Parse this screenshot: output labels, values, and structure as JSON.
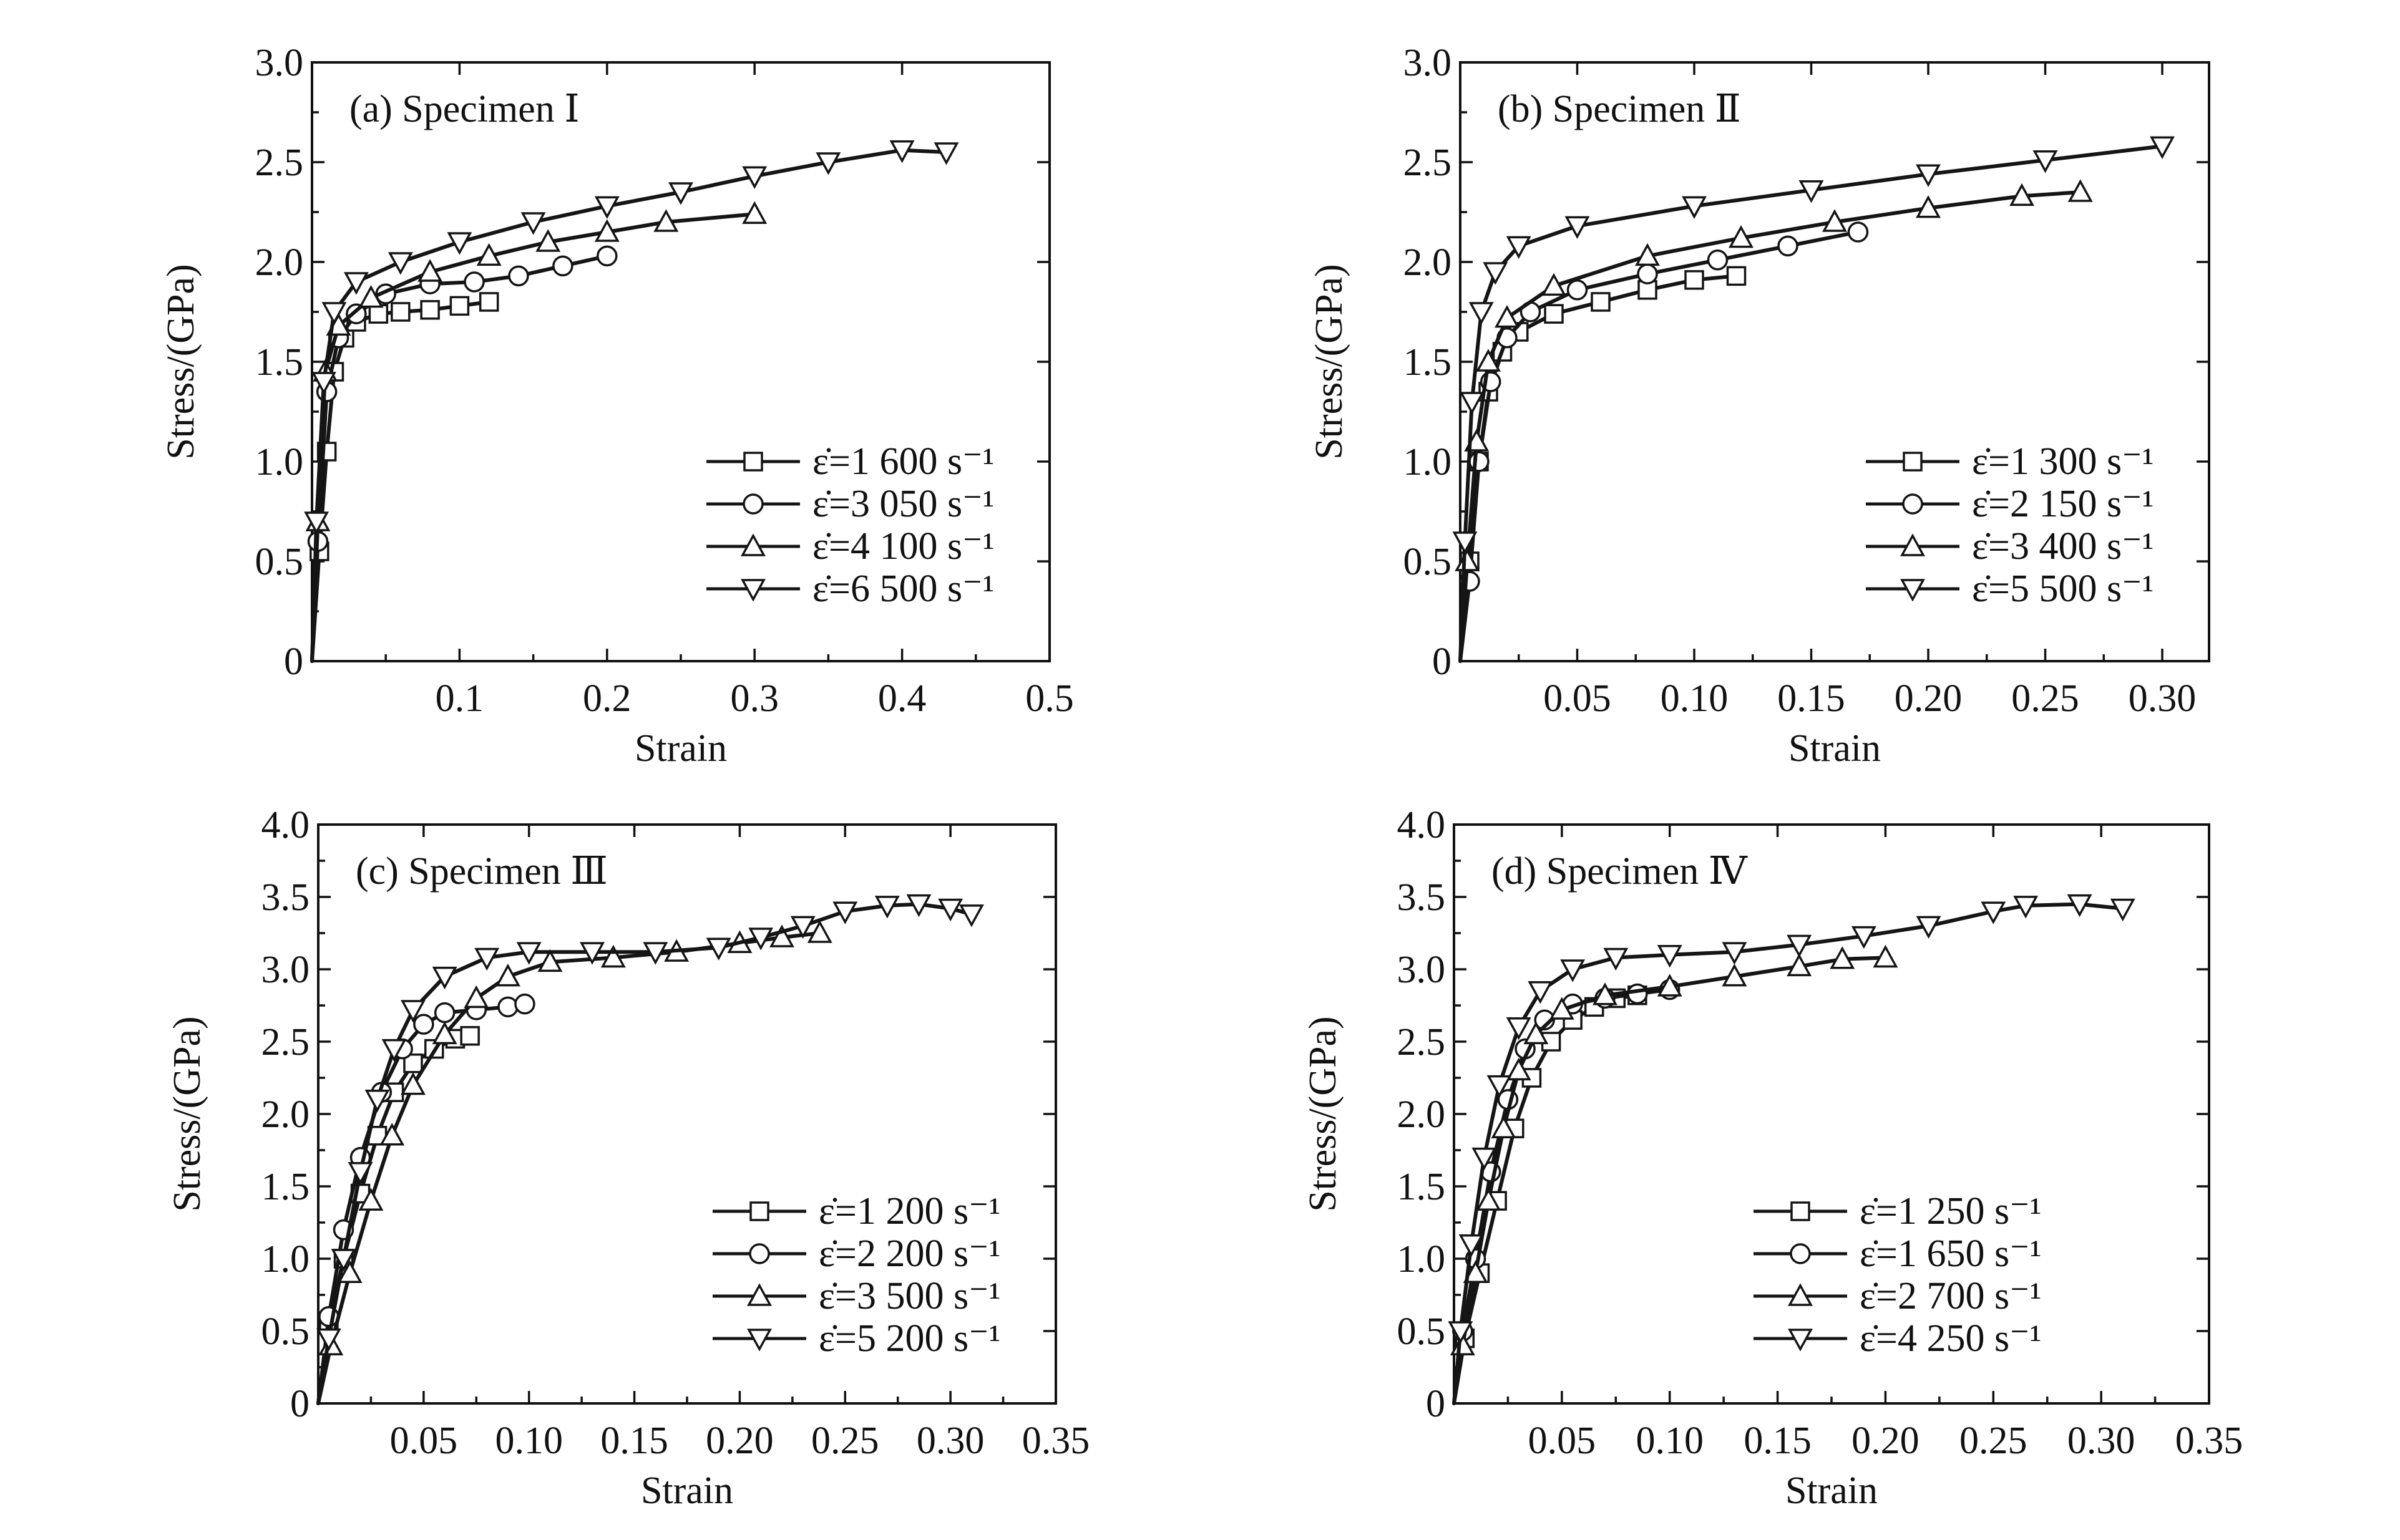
{
  "chart_data": [
    {
      "type": "line",
      "panel_label": "(a) Specimen Ⅰ",
      "xlabel": "Strain",
      "ylabel": "Stress/(GPa)",
      "xlim": [
        0,
        0.5
      ],
      "ylim": [
        0,
        3.0
      ],
      "x_ticks": [
        "0.1",
        "0.2",
        "0.3",
        "0.4",
        "0.5"
      ],
      "y_ticks": [
        "0",
        "0.5",
        "1.0",
        "1.5",
        "2.0",
        "2.5",
        "3.0"
      ],
      "legend_position": "lower-right",
      "series": [
        {
          "name": "ε̇=1 600 s⁻¹",
          "marker": "square",
          "points": [
            [
              0,
              0
            ],
            [
              0.005,
              0.55
            ],
            [
              0.01,
              1.05
            ],
            [
              0.015,
              1.45
            ],
            [
              0.022,
              1.62
            ],
            [
              0.03,
              1.7
            ],
            [
              0.045,
              1.74
            ],
            [
              0.06,
              1.75
            ],
            [
              0.08,
              1.76
            ],
            [
              0.1,
              1.78
            ],
            [
              0.12,
              1.8
            ]
          ]
        },
        {
          "name": "ε̇=3 050 s⁻¹",
          "marker": "circle",
          "points": [
            [
              0,
              0
            ],
            [
              0.004,
              0.6
            ],
            [
              0.01,
              1.35
            ],
            [
              0.018,
              1.62
            ],
            [
              0.03,
              1.74
            ],
            [
              0.05,
              1.84
            ],
            [
              0.08,
              1.89
            ],
            [
              0.11,
              1.9
            ],
            [
              0.14,
              1.93
            ],
            [
              0.17,
              1.98
            ],
            [
              0.2,
              2.03
            ]
          ]
        },
        {
          "name": "ε̇=4 100 s⁻¹",
          "marker": "triangle-up",
          "points": [
            [
              0,
              0
            ],
            [
              0.004,
              0.7
            ],
            [
              0.009,
              1.45
            ],
            [
              0.018,
              1.68
            ],
            [
              0.04,
              1.82
            ],
            [
              0.08,
              1.95
            ],
            [
              0.12,
              2.03
            ],
            [
              0.16,
              2.1
            ],
            [
              0.2,
              2.15
            ],
            [
              0.24,
              2.2
            ],
            [
              0.3,
              2.24
            ]
          ]
        },
        {
          "name": "ε̇=6 500 s⁻¹",
          "marker": "triangle-down",
          "points": [
            [
              0,
              0
            ],
            [
              0.003,
              0.7
            ],
            [
              0.008,
              1.4
            ],
            [
              0.015,
              1.75
            ],
            [
              0.03,
              1.9
            ],
            [
              0.06,
              2.0
            ],
            [
              0.1,
              2.1
            ],
            [
              0.15,
              2.2
            ],
            [
              0.2,
              2.28
            ],
            [
              0.25,
              2.35
            ],
            [
              0.3,
              2.43
            ],
            [
              0.35,
              2.5
            ],
            [
              0.4,
              2.56
            ],
            [
              0.43,
              2.55
            ]
          ]
        }
      ]
    },
    {
      "type": "line",
      "panel_label": "(b) Specimen Ⅱ",
      "xlabel": "Strain",
      "ylabel": "Stress/(GPa)",
      "xlim": [
        0,
        0.32
      ],
      "ylim": [
        0,
        3.0
      ],
      "x_ticks": [
        "0.05",
        "0.10",
        "0.15",
        "0.20",
        "0.25",
        "0.30"
      ],
      "y_ticks": [
        "0",
        "0.5",
        "1.0",
        "1.5",
        "2.0",
        "2.5",
        "3.0"
      ],
      "legend_position": "lower-right",
      "series": [
        {
          "name": "ε̇=1 300 s⁻¹",
          "marker": "square",
          "points": [
            [
              0,
              0
            ],
            [
              0.004,
              0.5
            ],
            [
              0.008,
              1.0
            ],
            [
              0.012,
              1.35
            ],
            [
              0.018,
              1.55
            ],
            [
              0.025,
              1.65
            ],
            [
              0.04,
              1.74
            ],
            [
              0.06,
              1.8
            ],
            [
              0.08,
              1.86
            ],
            [
              0.1,
              1.91
            ],
            [
              0.118,
              1.93
            ]
          ]
        },
        {
          "name": "ε̇=2 150 s⁻¹",
          "marker": "circle",
          "points": [
            [
              0,
              0
            ],
            [
              0.004,
              0.4
            ],
            [
              0.008,
              1.0
            ],
            [
              0.013,
              1.4
            ],
            [
              0.02,
              1.62
            ],
            [
              0.03,
              1.75
            ],
            [
              0.05,
              1.86
            ],
            [
              0.08,
              1.94
            ],
            [
              0.11,
              2.01
            ],
            [
              0.14,
              2.08
            ],
            [
              0.17,
              2.15
            ]
          ]
        },
        {
          "name": "ε̇=3 400 s⁻¹",
          "marker": "triangle-up",
          "points": [
            [
              0,
              0
            ],
            [
              0.003,
              0.5
            ],
            [
              0.007,
              1.1
            ],
            [
              0.012,
              1.5
            ],
            [
              0.02,
              1.72
            ],
            [
              0.04,
              1.88
            ],
            [
              0.08,
              2.03
            ],
            [
              0.12,
              2.12
            ],
            [
              0.16,
              2.2
            ],
            [
              0.2,
              2.27
            ],
            [
              0.24,
              2.33
            ],
            [
              0.265,
              2.35
            ]
          ]
        },
        {
          "name": "ε̇=5 500 s⁻¹",
          "marker": "triangle-down",
          "points": [
            [
              0,
              0
            ],
            [
              0.002,
              0.6
            ],
            [
              0.005,
              1.3
            ],
            [
              0.009,
              1.75
            ],
            [
              0.015,
              1.95
            ],
            [
              0.025,
              2.08
            ],
            [
              0.05,
              2.18
            ],
            [
              0.1,
              2.28
            ],
            [
              0.15,
              2.36
            ],
            [
              0.2,
              2.44
            ],
            [
              0.25,
              2.51
            ],
            [
              0.3,
              2.58
            ]
          ]
        }
      ]
    },
    {
      "type": "line",
      "panel_label": "(c) Specimen Ⅲ",
      "xlabel": "Strain",
      "ylabel": "Stress/(GPa)",
      "xlim": [
        0,
        0.35
      ],
      "ylim": [
        0,
        4.0
      ],
      "x_ticks": [
        "0.05",
        "0.10",
        "0.15",
        "0.20",
        "0.25",
        "0.30",
        "0.35"
      ],
      "y_ticks": [
        "0",
        "0.5",
        "1.0",
        "1.5",
        "2.0",
        "2.5",
        "3.0",
        "3.5",
        "4.0"
      ],
      "legend_position": "lower-right",
      "series": [
        {
          "name": "ε̇=1 200 s⁻¹",
          "marker": "square",
          "points": [
            [
              0,
              0
            ],
            [
              0.005,
              0.55
            ],
            [
              0.012,
              1.0
            ],
            [
              0.02,
              1.45
            ],
            [
              0.028,
              1.85
            ],
            [
              0.036,
              2.15
            ],
            [
              0.045,
              2.35
            ],
            [
              0.055,
              2.45
            ],
            [
              0.065,
              2.52
            ],
            [
              0.072,
              2.54
            ]
          ]
        },
        {
          "name": "ε̇=2 200 s⁻¹",
          "marker": "circle",
          "points": [
            [
              0,
              0
            ],
            [
              0.005,
              0.6
            ],
            [
              0.012,
              1.2
            ],
            [
              0.02,
              1.7
            ],
            [
              0.03,
              2.15
            ],
            [
              0.04,
              2.45
            ],
            [
              0.05,
              2.62
            ],
            [
              0.06,
              2.7
            ],
            [
              0.075,
              2.72
            ],
            [
              0.09,
              2.74
            ],
            [
              0.098,
              2.76
            ]
          ]
        },
        {
          "name": "ε̇=3 500 s⁻¹",
          "marker": "triangle-up",
          "points": [
            [
              0,
              0
            ],
            [
              0.006,
              0.4
            ],
            [
              0.015,
              0.9
            ],
            [
              0.025,
              1.4
            ],
            [
              0.035,
              1.85
            ],
            [
              0.045,
              2.2
            ],
            [
              0.06,
              2.55
            ],
            [
              0.075,
              2.8
            ],
            [
              0.09,
              2.95
            ],
            [
              0.11,
              3.05
            ],
            [
              0.14,
              3.08
            ],
            [
              0.17,
              3.12
            ],
            [
              0.2,
              3.18
            ],
            [
              0.22,
              3.22
            ],
            [
              0.238,
              3.25
            ]
          ]
        },
        {
          "name": "ε̇=5 200 s⁻¹",
          "marker": "triangle-down",
          "points": [
            [
              0,
              0
            ],
            [
              0.005,
              0.45
            ],
            [
              0.012,
              1.0
            ],
            [
              0.02,
              1.6
            ],
            [
              0.028,
              2.1
            ],
            [
              0.036,
              2.45
            ],
            [
              0.045,
              2.72
            ],
            [
              0.06,
              2.95
            ],
            [
              0.08,
              3.08
            ],
            [
              0.1,
              3.12
            ],
            [
              0.13,
              3.12
            ],
            [
              0.16,
              3.12
            ],
            [
              0.19,
              3.15
            ],
            [
              0.21,
              3.22
            ],
            [
              0.23,
              3.3
            ],
            [
              0.25,
              3.4
            ],
            [
              0.27,
              3.44
            ],
            [
              0.285,
              3.45
            ],
            [
              0.3,
              3.42
            ],
            [
              0.31,
              3.38
            ]
          ]
        }
      ]
    },
    {
      "type": "line",
      "panel_label": "(d) Specimen Ⅳ",
      "xlabel": "Strain",
      "ylabel": "Stress/(GPa)",
      "xlim": [
        0,
        0.35
      ],
      "ylim": [
        0,
        4.0
      ],
      "x_ticks": [
        "0.05",
        "0.10",
        "0.15",
        "0.20",
        "0.25",
        "0.30",
        "0.35"
      ],
      "y_ticks": [
        "0",
        "0.5",
        "1.0",
        "1.5",
        "2.0",
        "2.5",
        "3.0",
        "3.5",
        "4.0"
      ],
      "legend_position": "lower-right",
      "series": [
        {
          "name": "ε̇=1 250 s⁻¹",
          "marker": "square",
          "points": [
            [
              0,
              0
            ],
            [
              0.005,
              0.45
            ],
            [
              0.012,
              0.9
            ],
            [
              0.02,
              1.4
            ],
            [
              0.028,
              1.9
            ],
            [
              0.036,
              2.25
            ],
            [
              0.045,
              2.5
            ],
            [
              0.055,
              2.65
            ],
            [
              0.065,
              2.74
            ],
            [
              0.075,
              2.8
            ],
            [
              0.085,
              2.82
            ]
          ]
        },
        {
          "name": "ε̇=1 650 s⁻¹",
          "marker": "circle",
          "points": [
            [
              0,
              0
            ],
            [
              0.004,
              0.5
            ],
            [
              0.01,
              1.0
            ],
            [
              0.017,
              1.6
            ],
            [
              0.025,
              2.1
            ],
            [
              0.033,
              2.45
            ],
            [
              0.042,
              2.65
            ],
            [
              0.055,
              2.76
            ],
            [
              0.07,
              2.8
            ],
            [
              0.085,
              2.83
            ],
            [
              0.1,
              2.86
            ]
          ]
        },
        {
          "name": "ε̇=2 700 s⁻¹",
          "marker": "triangle-up",
          "points": [
            [
              0,
              0
            ],
            [
              0.004,
              0.4
            ],
            [
              0.01,
              0.9
            ],
            [
              0.016,
              1.4
            ],
            [
              0.023,
              1.9
            ],
            [
              0.03,
              2.3
            ],
            [
              0.038,
              2.55
            ],
            [
              0.05,
              2.72
            ],
            [
              0.07,
              2.82
            ],
            [
              0.1,
              2.88
            ],
            [
              0.13,
              2.95
            ],
            [
              0.16,
              3.02
            ],
            [
              0.18,
              3.07
            ],
            [
              0.2,
              3.08
            ]
          ]
        },
        {
          "name": "ε̇=4 250 s⁻¹",
          "marker": "triangle-down",
          "points": [
            [
              0,
              0
            ],
            [
              0.003,
              0.5
            ],
            [
              0.008,
              1.1
            ],
            [
              0.014,
              1.7
            ],
            [
              0.021,
              2.2
            ],
            [
              0.03,
              2.6
            ],
            [
              0.04,
              2.85
            ],
            [
              0.055,
              3.0
            ],
            [
              0.075,
              3.08
            ],
            [
              0.1,
              3.1
            ],
            [
              0.13,
              3.12
            ],
            [
              0.16,
              3.17
            ],
            [
              0.19,
              3.23
            ],
            [
              0.22,
              3.3
            ],
            [
              0.25,
              3.4
            ],
            [
              0.265,
              3.44
            ],
            [
              0.29,
              3.45
            ],
            [
              0.31,
              3.42
            ]
          ]
        }
      ]
    }
  ]
}
